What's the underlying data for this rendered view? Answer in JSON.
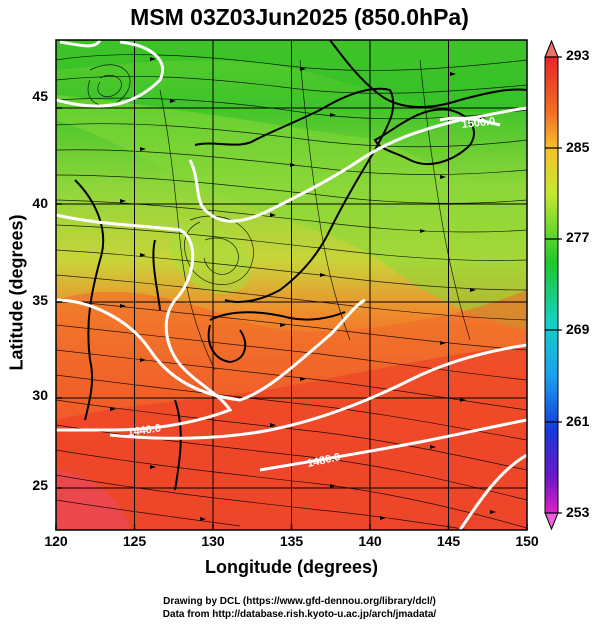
{
  "title": "MSM 03Z03Jun2025 (850.0hPa)",
  "x_axis": {
    "label": "Longitude (degrees)",
    "range": [
      120,
      150
    ],
    "ticks": [
      "120",
      "125",
      "130",
      "135",
      "140",
      "145",
      "150"
    ]
  },
  "y_axis": {
    "label": "Latitude  (degrees)",
    "range": [
      22.5,
      47.6
    ],
    "ticks": [
      "25",
      "30",
      "35",
      "40",
      "45"
    ]
  },
  "colorbar": {
    "range": [
      253,
      293
    ],
    "ticks": [
      "293",
      "285",
      "277",
      "269",
      "261",
      "253"
    ]
  },
  "contour_labels": [
    "1440.0",
    "1480.0",
    "1500.0"
  ],
  "credits": [
    "Drawing by DCL (https://www.gfd-dennou.org/library/dcl/)",
    "Data from http://database.rish.kyoto-u.ac.jp/arch/jmadata/"
  ],
  "layers": {
    "field": "temperature (K)",
    "contours": "geopotential height (m)",
    "vectors": "wind streamlines"
  }
}
